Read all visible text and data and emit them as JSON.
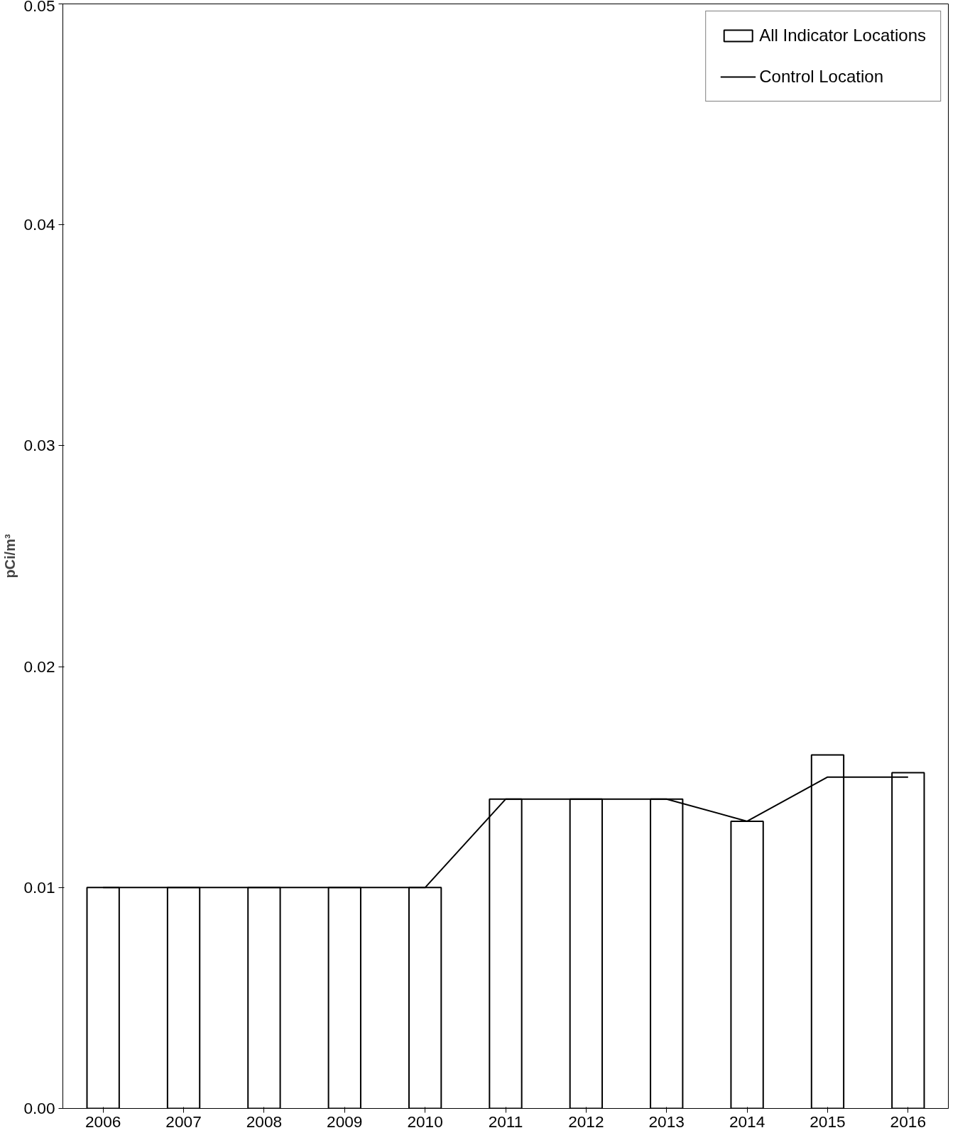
{
  "chart_data": {
    "type": "bar",
    "ylabel": "pCi/m³",
    "categories": [
      "2006",
      "2007",
      "2008",
      "2009",
      "2010",
      "2011",
      "2012",
      "2013",
      "2014",
      "2015",
      "2016"
    ],
    "series": [
      {
        "name": "All Indicator Locations",
        "color": "#ffffff",
        "values": [
          0.01,
          0.01,
          0.01,
          0.01,
          0.01,
          0.014,
          0.014,
          0.014,
          0.013,
          0.016,
          0.0152
        ]
      },
      {
        "name": "Control Location",
        "type": "line",
        "color": "#000000",
        "values": [
          0.01,
          0.01,
          0.01,
          0.01,
          0.01,
          0.014,
          0.014,
          0.014,
          0.013,
          0.015,
          0.015
        ]
      }
    ],
    "ylim": [
      0,
      0.05
    ],
    "yticks": [
      {
        "value": 0,
        "label": "0.00"
      },
      0.01,
      0.02,
      0.03,
      0.04,
      0.05
    ],
    "grid": false,
    "legend": "top right",
    "marker": "none",
    "line_style": "solid"
  }
}
